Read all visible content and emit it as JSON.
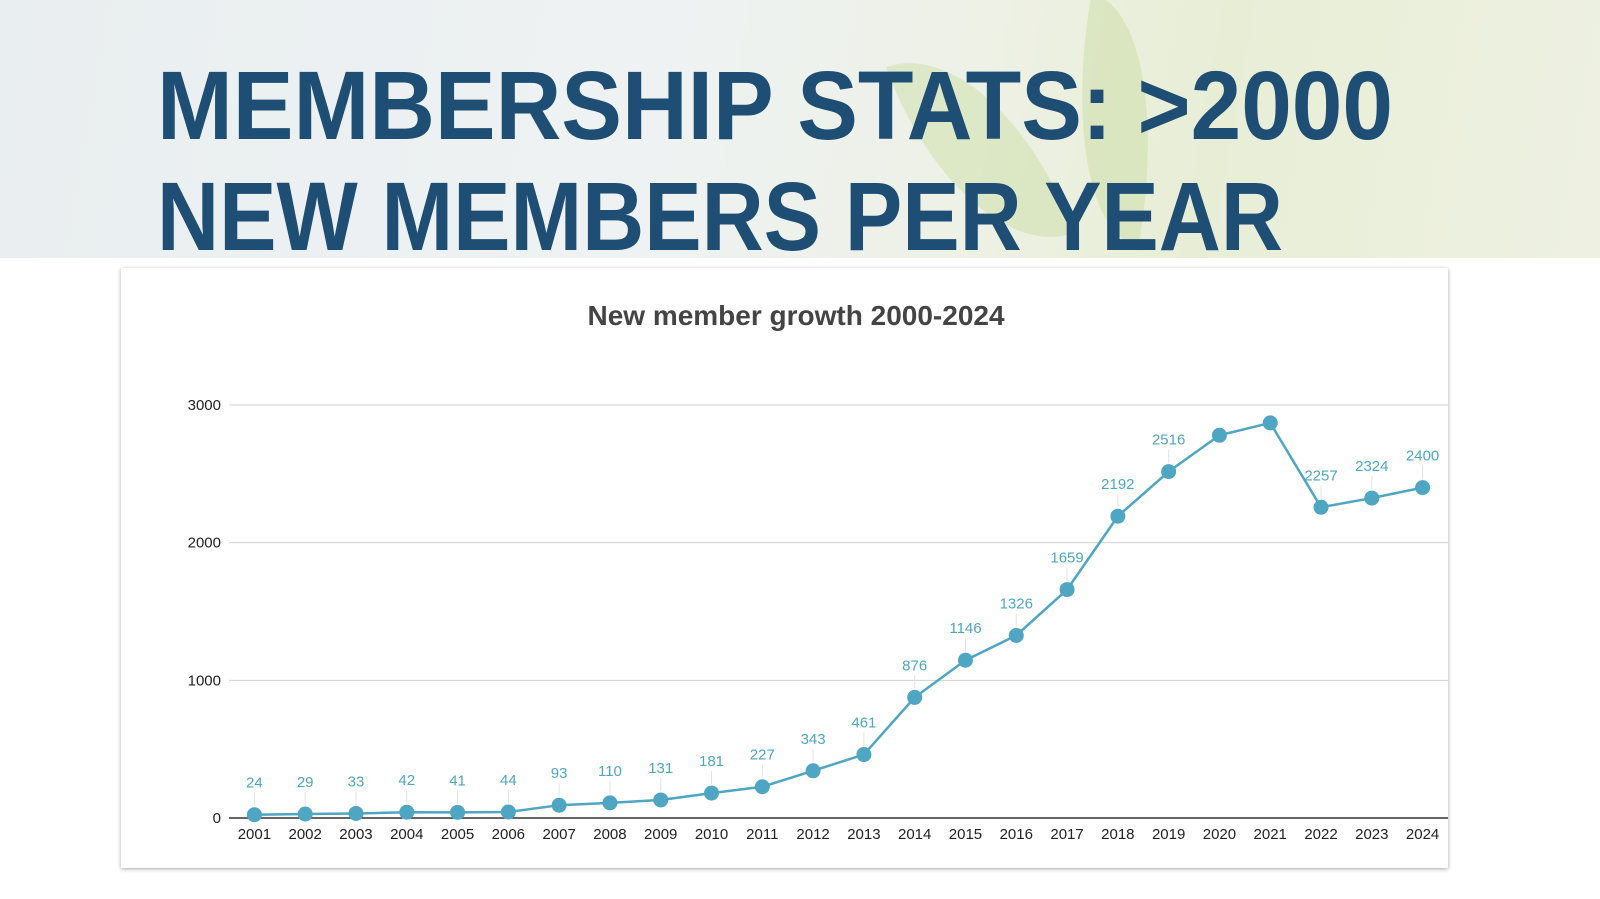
{
  "slide": {
    "title_line1": "MEMBERSHIP STATS: >2000",
    "title_line2": "NEW MEMBERS PER YEAR",
    "title_color": "#1f4e74"
  },
  "chart_data": {
    "type": "line",
    "title": "New member growth 2000-2024",
    "xlabel": "",
    "ylabel": "",
    "categories": [
      "2001",
      "2002",
      "2003",
      "2004",
      "2005",
      "2006",
      "2007",
      "2008",
      "2009",
      "2010",
      "2011",
      "2012",
      "2013",
      "2014",
      "2015",
      "2016",
      "2017",
      "2018",
      "2019",
      "2020",
      "2021",
      "2022",
      "2023",
      "2024"
    ],
    "values": [
      24,
      29,
      33,
      42,
      41,
      44,
      93,
      110,
      131,
      181,
      227,
      343,
      461,
      876,
      1146,
      1326,
      1659,
      2192,
      2516,
      2780,
      2870,
      2257,
      2324,
      2400
    ],
    "data_labels": [
      "24",
      "29",
      "33",
      "42",
      "41",
      "44",
      "93",
      "110",
      "131",
      "181",
      "227",
      "343",
      "461",
      "876",
      "1146",
      "1326",
      "1659",
      "2192",
      "2516",
      "",
      "",
      "2257",
      "2324",
      "2400"
    ],
    "ylim": [
      0,
      3000
    ],
    "yticks": [
      "0",
      "1000",
      "2000",
      "3000"
    ],
    "grid": true,
    "legend": "none",
    "series_color": "#4ea6c2"
  }
}
